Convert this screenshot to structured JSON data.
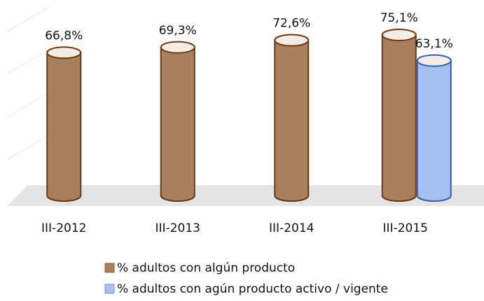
{
  "chart_data": {
    "type": "bar",
    "categories": [
      "III-2012",
      "III-2013",
      "III-2014",
      "III-2015"
    ],
    "series": [
      {
        "name": "% adultos con algún producto",
        "color": "#a97f5e",
        "values": [
          66.8,
          69.3,
          72.6,
          75.1
        ],
        "value_labels": [
          "66,8%",
          "69,3%",
          "72,6%",
          "75,1%"
        ]
      },
      {
        "name": "% adultos con agún producto activo / vigente",
        "color": "#a4bff2",
        "values": [
          null,
          null,
          null,
          63.1
        ],
        "value_labels": [
          null,
          null,
          null,
          "63,1%"
        ]
      }
    ],
    "ylim": [
      0,
      80
    ],
    "yticks": [
      0,
      20,
      40,
      60,
      80
    ],
    "grid": true
  }
}
